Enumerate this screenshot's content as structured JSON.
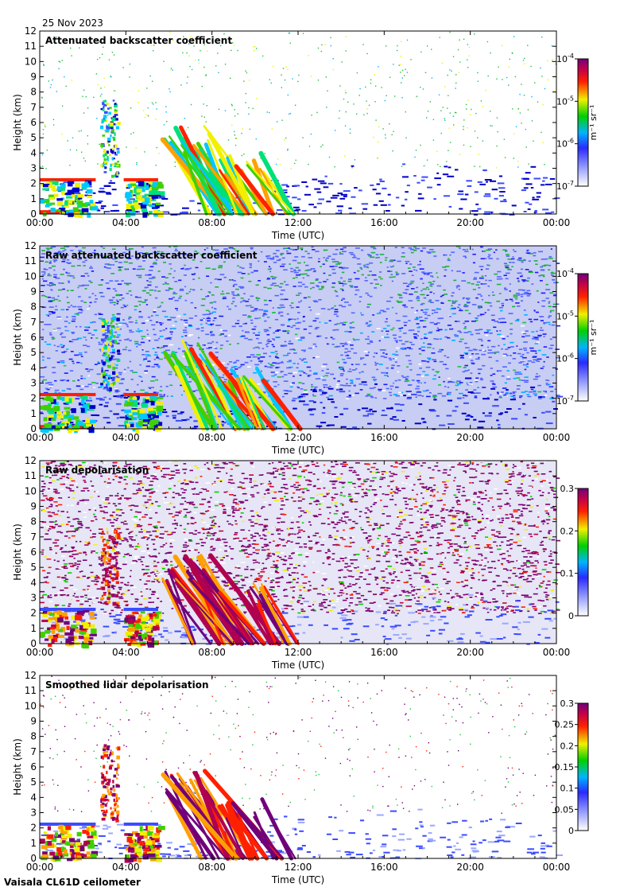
{
  "date": "25 Nov 2023",
  "footer": "Vaisala CL61D ceilometer",
  "xlabel": "Time (UTC)",
  "ylabel": "Height (km)",
  "xticks": [
    "00:00",
    "04:00",
    "08:00",
    "12:00",
    "16:00",
    "20:00",
    "00:00"
  ],
  "yticks": [
    "0",
    "1",
    "2",
    "3",
    "4",
    "5",
    "6",
    "7",
    "8",
    "9",
    "10",
    "11",
    "12"
  ],
  "chart_data": [
    {
      "type": "heatmap",
      "title": "Attenuated backscatter coefficient",
      "x_range_hours": [
        0,
        24
      ],
      "ylim": [
        0,
        12
      ],
      "colorbar": {
        "scale": "log",
        "range": [
          1e-07,
          0.0001
        ],
        "ticks": [
          "10^-7",
          "10^-6",
          "10^-5",
          "10^-4"
        ],
        "unit": "m-1 sr-1"
      },
      "features": [
        {
          "label": "boundary layer top",
          "hours": [
            0,
            5.5
          ],
          "height_km": 2.3
        },
        {
          "label": "cloud",
          "hours": [
            2.8,
            3.6
          ],
          "height_km": [
            4,
            7.6
          ]
        },
        {
          "label": "precipitation",
          "hours": [
            5.7,
            10.5
          ],
          "height_km": [
            0,
            5.5
          ]
        },
        {
          "label": "aerosol layer",
          "hours": [
            10.5,
            24
          ],
          "height_km": [
            0,
            3.5
          ]
        }
      ]
    },
    {
      "type": "heatmap",
      "title": "Raw attenuated backscatter coefficient",
      "x_range_hours": [
        0,
        24
      ],
      "ylim": [
        0,
        12
      ],
      "colorbar": {
        "scale": "log",
        "range": [
          1e-07,
          0.0001
        ],
        "ticks": [
          "10^-7",
          "10^-6",
          "10^-5",
          "10^-4"
        ],
        "unit": "m-1 sr-1"
      }
    },
    {
      "type": "heatmap",
      "title": "Raw depolarisation",
      "x_range_hours": [
        0,
        24
      ],
      "ylim": [
        0,
        12
      ],
      "colorbar": {
        "scale": "linear",
        "range": [
          0,
          0.3
        ],
        "ticks": [
          "0",
          "0.1",
          "0.2",
          "0.3"
        ]
      }
    },
    {
      "type": "heatmap",
      "title": "Smoothed lidar depolarisation",
      "x_range_hours": [
        0,
        24
      ],
      "ylim": [
        0,
        12
      ],
      "colorbar": {
        "scale": "linear",
        "range": [
          0,
          0.3
        ],
        "ticks": [
          "0",
          "0.05",
          "0.1",
          "0.15",
          "0.2",
          "0.25",
          "0.3"
        ]
      }
    }
  ],
  "palette": [
    "#ffffff",
    "#9aa7ff",
    "#3a4cff",
    "#0000c8",
    "#00c8ff",
    "#00e07a",
    "#40d000",
    "#f0f000",
    "#ffa000",
    "#ff2000",
    "#b00050",
    "#70007a"
  ]
}
